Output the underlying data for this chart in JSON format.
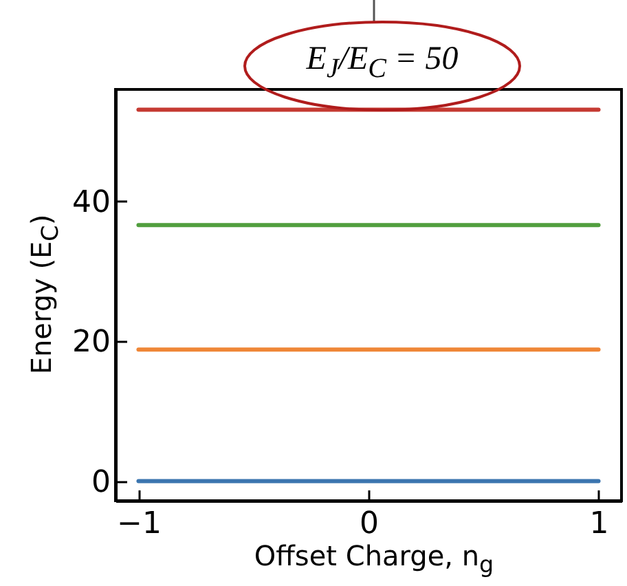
{
  "chart_data": {
    "type": "line",
    "title": "E$_{J}$/E$_{C}$ = 50",
    "xlabel": "Offset Charge, n$_{g}$",
    "ylabel": "Energy (E$_{C}$)",
    "x": [
      -1,
      1
    ],
    "series": [
      {
        "color": "#3b75af",
        "values": [
          0,
          0
        ]
      },
      {
        "color": "#ef8636",
        "values": [
          18.8,
          18.8
        ]
      },
      {
        "color": "#519e3e",
        "values": [
          36.6,
          36.6
        ]
      },
      {
        "color": "#c53a32",
        "values": [
          53.1,
          53.1
        ]
      }
    ],
    "xlim": [
      -1.1,
      1.1
    ],
    "ylim": [
      -2.8,
      56
    ],
    "xticks": [
      {
        "value": -1,
        "label": "−1"
      },
      0,
      1
    ],
    "yticks": [
      0,
      20,
      40
    ],
    "grid": false,
    "legend": false,
    "marker": "none",
    "line_style": "solid"
  }
}
